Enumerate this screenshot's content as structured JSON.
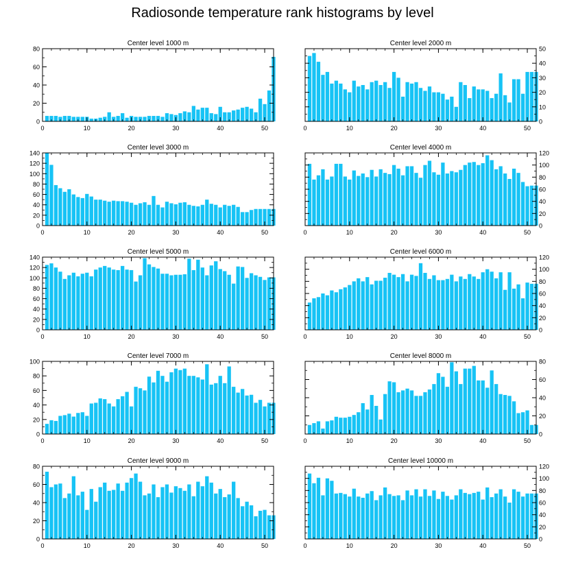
{
  "title": "Radiosonde temperature rank histograms by level",
  "colors": {
    "bar": "#17c3f5",
    "axis": "#000000",
    "background": "#ffffff"
  },
  "chart_data": [
    {
      "type": "bar",
      "title": "Center level 1000 m",
      "x_start": 1,
      "xlim": [
        0,
        52
      ],
      "xticks": [
        0,
        10,
        20,
        30,
        40,
        50
      ],
      "ylim": [
        0,
        80
      ],
      "yticks": [
        0,
        20,
        40,
        60,
        80
      ],
      "y_axis_side": "left",
      "values": [
        6,
        6,
        6,
        5,
        6,
        6,
        5,
        5,
        5,
        5,
        3,
        3,
        4,
        5,
        10,
        5,
        6,
        9,
        4,
        6,
        5,
        5,
        5,
        6,
        6,
        6,
        5,
        9,
        8,
        7,
        9,
        11,
        10,
        17,
        13,
        15,
        15,
        9,
        8,
        16,
        10,
        10,
        12,
        13,
        15,
        16,
        14,
        10,
        25,
        19,
        34,
        71
      ]
    },
    {
      "type": "bar",
      "title": "Center level 2000 m",
      "x_start": 1,
      "xlim": [
        0,
        52
      ],
      "xticks": [
        0,
        10,
        20,
        30,
        40,
        50
      ],
      "ylim": [
        0,
        50
      ],
      "yticks": [
        0,
        10,
        20,
        30,
        40,
        50
      ],
      "y_axis_side": "right",
      "values": [
        45,
        47,
        41,
        32,
        34,
        26,
        28,
        26,
        22,
        20,
        28,
        24,
        25,
        22,
        27,
        28,
        25,
        27,
        23,
        34,
        30,
        17,
        27,
        26,
        27,
        23,
        21,
        24,
        20,
        20,
        19,
        15,
        17,
        10,
        27,
        25,
        16,
        24,
        22,
        22,
        21,
        16,
        19,
        33,
        18,
        13,
        29,
        29,
        19,
        34,
        34,
        34
      ]
    },
    {
      "type": "bar",
      "title": "Center level 3000 m",
      "x_start": 1,
      "xlim": [
        0,
        52
      ],
      "xticks": [
        0,
        10,
        20,
        30,
        40,
        50
      ],
      "ylim": [
        0,
        140
      ],
      "yticks": [
        0,
        20,
        40,
        60,
        80,
        100,
        120,
        140
      ],
      "y_axis_side": "left",
      "values": [
        140,
        117,
        78,
        72,
        65,
        70,
        60,
        55,
        53,
        61,
        56,
        50,
        50,
        48,
        46,
        48,
        47,
        47,
        46,
        44,
        40,
        43,
        45,
        40,
        57,
        40,
        35,
        46,
        43,
        41,
        44,
        45,
        40,
        38,
        37,
        40,
        50,
        42,
        40,
        35,
        40,
        38,
        40,
        36,
        26,
        26,
        30,
        32,
        32,
        32,
        32,
        32
      ]
    },
    {
      "type": "bar",
      "title": "Center level 4000 m",
      "x_start": 1,
      "xlim": [
        0,
        52
      ],
      "xticks": [
        0,
        10,
        20,
        30,
        40,
        50
      ],
      "ylim": [
        0,
        120
      ],
      "yticks": [
        0,
        20,
        40,
        60,
        80,
        100,
        120
      ],
      "y_axis_side": "right",
      "values": [
        102,
        76,
        83,
        93,
        76,
        81,
        102,
        102,
        81,
        76,
        91,
        82,
        86,
        80,
        92,
        81,
        93,
        87,
        85,
        100,
        94,
        83,
        98,
        98,
        87,
        79,
        100,
        107,
        88,
        84,
        104,
        86,
        90,
        88,
        92,
        100,
        104,
        105,
        100,
        103,
        116,
        108,
        93,
        98,
        86,
        77,
        94,
        87,
        72,
        65,
        66,
        66
      ]
    },
    {
      "type": "bar",
      "title": "Center level 5000 m",
      "x_start": 1,
      "xlim": [
        0,
        52
      ],
      "xticks": [
        0,
        10,
        20,
        30,
        40,
        50
      ],
      "ylim": [
        0,
        140
      ],
      "yticks": [
        0,
        20,
        40,
        60,
        80,
        100,
        120,
        140
      ],
      "y_axis_side": "left",
      "values": [
        125,
        128,
        120,
        112,
        98,
        105,
        110,
        103,
        108,
        110,
        103,
        116,
        120,
        123,
        120,
        116,
        115,
        123,
        116,
        115,
        93,
        105,
        138,
        126,
        121,
        118,
        108,
        108,
        105,
        106,
        106,
        107,
        137,
        115,
        135,
        120,
        105,
        124,
        132,
        117,
        113,
        106,
        89,
        122,
        121,
        100,
        109,
        105,
        102,
        96,
        101,
        101
      ]
    },
    {
      "type": "bar",
      "title": "Center level 6000 m",
      "x_start": 1,
      "xlim": [
        0,
        52
      ],
      "xticks": [
        0,
        10,
        20,
        30,
        40,
        50
      ],
      "ylim": [
        0,
        120
      ],
      "yticks": [
        0,
        20,
        40,
        60,
        80,
        100,
        120
      ],
      "y_axis_side": "right",
      "values": [
        45,
        52,
        54,
        60,
        57,
        65,
        62,
        67,
        70,
        74,
        80,
        85,
        80,
        87,
        75,
        81,
        81,
        86,
        94,
        91,
        87,
        92,
        80,
        91,
        89,
        110,
        94,
        84,
        90,
        82,
        82,
        84,
        91,
        80,
        88,
        84,
        92,
        88,
        84,
        95,
        100,
        96,
        85,
        95,
        66,
        95,
        68,
        75,
        52,
        78,
        76,
        76
      ]
    },
    {
      "type": "bar",
      "title": "Center level 7000 m",
      "x_start": 1,
      "xlim": [
        0,
        52
      ],
      "xticks": [
        0,
        10,
        20,
        30,
        40,
        50
      ],
      "ylim": [
        0,
        100
      ],
      "yticks": [
        0,
        20,
        40,
        60,
        80,
        100
      ],
      "y_axis_side": "left",
      "values": [
        14,
        19,
        18,
        25,
        26,
        28,
        24,
        29,
        30,
        25,
        42,
        43,
        49,
        48,
        42,
        38,
        48,
        52,
        58,
        38,
        65,
        63,
        60,
        79,
        71,
        87,
        80,
        72,
        85,
        90,
        88,
        90,
        80,
        80,
        78,
        75,
        96,
        68,
        70,
        80,
        70,
        93,
        65,
        57,
        62,
        53,
        54,
        43,
        47,
        38,
        43,
        43
      ]
    },
    {
      "type": "bar",
      "title": "Center level 8000 m",
      "x_start": 1,
      "xlim": [
        0,
        52
      ],
      "xticks": [
        0,
        10,
        20,
        30,
        40,
        50
      ],
      "ylim": [
        0,
        80
      ],
      "yticks": [
        0,
        20,
        40,
        60,
        80
      ],
      "y_axis_side": "right",
      "values": [
        10,
        12,
        14,
        6,
        14,
        15,
        19,
        18,
        18,
        19,
        21,
        24,
        34,
        27,
        43,
        31,
        16,
        44,
        58,
        57,
        46,
        48,
        50,
        48,
        42,
        42,
        46,
        49,
        55,
        67,
        63,
        52,
        79,
        69,
        55,
        72,
        72,
        75,
        59,
        59,
        51,
        70,
        55,
        44,
        43,
        42,
        36,
        23,
        24,
        26,
        10,
        10
      ]
    },
    {
      "type": "bar",
      "title": "Center level 9000 m",
      "x_start": 1,
      "xlim": [
        0,
        52
      ],
      "xticks": [
        0,
        10,
        20,
        30,
        40,
        50
      ],
      "ylim": [
        0,
        80
      ],
      "yticks": [
        0,
        20,
        40,
        60,
        80
      ],
      "y_axis_side": "left",
      "values": [
        74,
        57,
        60,
        61,
        45,
        50,
        69,
        48,
        52,
        32,
        55,
        41,
        57,
        62,
        53,
        54,
        61,
        53,
        62,
        67,
        72,
        63,
        48,
        50,
        60,
        46,
        57,
        60,
        51,
        58,
        56,
        53,
        60,
        47,
        63,
        58,
        69,
        62,
        50,
        55,
        46,
        49,
        63,
        45,
        36,
        41,
        37,
        25,
        31,
        32,
        26,
        26
      ]
    },
    {
      "type": "bar",
      "title": "Center level 10000 m",
      "x_start": 1,
      "xlim": [
        0,
        52
      ],
      "xticks": [
        0,
        10,
        20,
        30,
        40,
        50
      ],
      "ylim": [
        0,
        120
      ],
      "yticks": [
        0,
        20,
        40,
        60,
        80,
        100,
        120
      ],
      "y_axis_side": "right",
      "values": [
        108,
        92,
        101,
        72,
        100,
        96,
        75,
        76,
        74,
        70,
        83,
        70,
        68,
        75,
        79,
        64,
        72,
        85,
        74,
        71,
        72,
        64,
        80,
        72,
        82,
        70,
        82,
        71,
        80,
        66,
        78,
        71,
        65,
        72,
        82,
        76,
        74,
        76,
        78,
        65,
        85,
        69,
        75,
        82,
        70,
        60,
        82,
        78,
        70,
        75,
        75,
        75
      ]
    }
  ]
}
